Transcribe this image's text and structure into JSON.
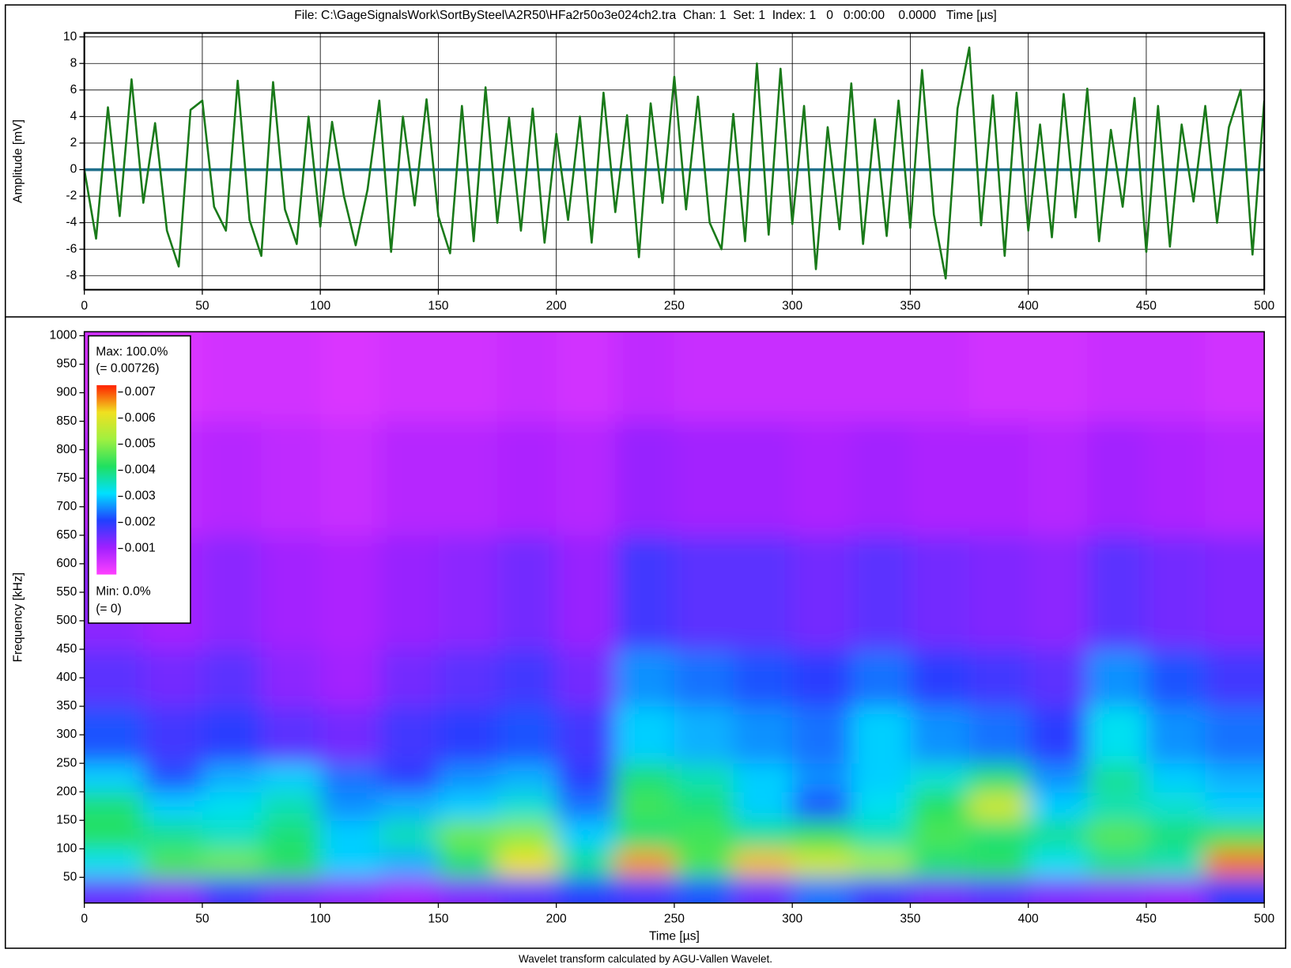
{
  "chart_data": [
    {
      "type": "line",
      "title": "File: C:\\GageSignalsWork\\SortBySteel\\A2R50\\HFa2r50o3e024ch2.tra  Chan: 1  Set: 1  Index: 1   0   0:00:00    0.0000   Time [µs]",
      "ylabel": "Amplitude [mV]",
      "xlim": [
        0,
        500
      ],
      "ylim": [
        -9.05,
        10.3
      ],
      "xticks": [
        0,
        50,
        100,
        150,
        200,
        250,
        300,
        350,
        400,
        450,
        500
      ],
      "yticks": [
        -8,
        -6,
        -4,
        -2,
        0,
        2,
        4,
        6,
        8,
        10
      ],
      "grid": true,
      "series": [
        {
          "color": "#1a7a1a",
          "x": [
            0,
            5,
            10,
            15,
            20,
            25,
            30,
            35,
            40,
            45,
            50,
            55,
            60,
            65,
            70,
            75,
            80,
            85,
            90,
            95,
            100,
            105,
            110,
            115,
            120,
            125,
            130,
            135,
            140,
            145,
            150,
            155,
            160,
            165,
            170,
            175,
            180,
            185,
            190,
            195,
            200,
            205,
            210,
            215,
            220,
            225,
            230,
            235,
            240,
            245,
            250,
            255,
            260,
            265,
            270,
            275,
            280,
            285,
            290,
            295,
            300,
            305,
            310,
            315,
            320,
            325,
            330,
            335,
            340,
            345,
            350,
            355,
            360,
            365,
            370,
            375,
            380,
            385,
            390,
            395,
            400,
            405,
            410,
            415,
            420,
            425,
            430,
            435,
            440,
            445,
            450,
            455,
            460,
            465,
            470,
            475,
            480,
            485,
            490,
            495,
            500
          ],
          "values": [
            0,
            -5.2,
            4.7,
            -3.5,
            6.8,
            -2.5,
            3.5,
            -4.6,
            -7.3,
            4.5,
            5.2,
            -2.8,
            -4.6,
            6.7,
            -3.8,
            -6.5,
            6.6,
            -3.0,
            -5.6,
            4.0,
            -4.3,
            3.6,
            -2.0,
            -5.7,
            -1.5,
            5.2,
            -6.2,
            4.0,
            -2.7,
            5.3,
            -3.5,
            -6.3,
            4.8,
            -5.4,
            6.2,
            -4.0,
            3.9,
            -4.6,
            4.6,
            -5.5,
            2.7,
            -3.8,
            4.0,
            -5.5,
            5.8,
            -3.2,
            4.1,
            -6.6,
            5.0,
            -2.5,
            7.0,
            -3.0,
            5.5,
            -4.0,
            -6.0,
            4.2,
            -5.4,
            8.0,
            -4.9,
            7.6,
            -4.1,
            4.8,
            -7.5,
            3.2,
            -4.5,
            6.5,
            -5.6,
            3.8,
            -5.0,
            5.2,
            -4.4,
            7.5,
            -3.4,
            -8.2,
            4.6,
            9.2,
            -4.2,
            5.6,
            -6.5,
            5.8,
            -4.6,
            3.4,
            -5.1,
            5.7,
            -3.6,
            6.1,
            -5.4,
            3.0,
            -2.8,
            5.4,
            -6.2,
            4.8,
            -5.8,
            3.4,
            -2.4,
            4.8,
            -4.0,
            3.2,
            6.0,
            -6.4,
            5.2
          ]
        },
        {
          "color": "#1f6f8b",
          "x": [
            0,
            500
          ],
          "values": [
            0,
            0
          ]
        }
      ]
    },
    {
      "type": "heatmap",
      "xlabel": "Time [µs]",
      "ylabel": "Frequency [kHz]",
      "xlim": [
        0,
        500
      ],
      "ylim": [
        5,
        1007
      ],
      "xticks": [
        0,
        50,
        100,
        150,
        200,
        250,
        300,
        350,
        400,
        450,
        500
      ],
      "yticks": [
        50,
        100,
        150,
        200,
        250,
        300,
        350,
        400,
        450,
        500,
        550,
        600,
        650,
        700,
        750,
        800,
        850,
        900,
        950,
        1000
      ],
      "x_edges": [
        0,
        25,
        50,
        75,
        100,
        125,
        150,
        175,
        200,
        225,
        250,
        275,
        300,
        325,
        350,
        375,
        400,
        425,
        450,
        475,
        500
      ],
      "y_edges": [
        5,
        50,
        100,
        150,
        200,
        250,
        350,
        450,
        650,
        850,
        1007
      ],
      "z": [
        [
          0.0015,
          0.0012,
          0.0018,
          0.0014,
          0.0012,
          0.001,
          0.0013,
          0.0016,
          0.002,
          0.0018,
          0.0022,
          0.0015,
          0.0024,
          0.0018,
          0.0014,
          0.0016,
          0.0013,
          0.0012,
          0.0011,
          0.002
        ],
        [
          0.0032,
          0.0045,
          0.0048,
          0.0042,
          0.003,
          0.0028,
          0.004,
          0.0062,
          0.0038,
          0.0066,
          0.0045,
          0.0064,
          0.0058,
          0.0052,
          0.004,
          0.0042,
          0.0032,
          0.0038,
          0.0036,
          0.0068
        ],
        [
          0.0042,
          0.0038,
          0.0035,
          0.004,
          0.003,
          0.0036,
          0.0048,
          0.005,
          0.003,
          0.004,
          0.0044,
          0.0038,
          0.0042,
          0.0036,
          0.0045,
          0.004,
          0.0038,
          0.0046,
          0.004,
          0.0044
        ],
        [
          0.004,
          0.003,
          0.0032,
          0.0036,
          0.0026,
          0.0028,
          0.003,
          0.0034,
          0.0024,
          0.0044,
          0.004,
          0.003,
          0.0022,
          0.0032,
          0.0042,
          0.0058,
          0.003,
          0.0036,
          0.0034,
          0.003
        ],
        [
          0.003,
          0.0022,
          0.0028,
          0.003,
          0.0024,
          0.002,
          0.0026,
          0.0028,
          0.002,
          0.004,
          0.0036,
          0.003,
          0.0026,
          0.003,
          0.0034,
          0.004,
          0.0026,
          0.0038,
          0.003,
          0.0028
        ],
        [
          0.0022,
          0.0018,
          0.002,
          0.0016,
          0.0014,
          0.0018,
          0.002,
          0.0022,
          0.0018,
          0.003,
          0.0028,
          0.0026,
          0.0024,
          0.003,
          0.0026,
          0.0024,
          0.002,
          0.0032,
          0.0026,
          0.0024
        ],
        [
          0.0016,
          0.0014,
          0.0016,
          0.0012,
          0.001,
          0.0014,
          0.0016,
          0.0018,
          0.0014,
          0.0026,
          0.0024,
          0.0022,
          0.002,
          0.0024,
          0.002,
          0.0018,
          0.0016,
          0.0026,
          0.0022,
          0.0018
        ],
        [
          0.0012,
          0.001,
          0.0012,
          0.001,
          0.0009,
          0.0011,
          0.0012,
          0.0014,
          0.0011,
          0.0018,
          0.0016,
          0.0016,
          0.0014,
          0.0016,
          0.0014,
          0.0013,
          0.0012,
          0.0016,
          0.0014,
          0.0013
        ],
        [
          0.0008,
          0.0007,
          0.0008,
          0.0007,
          0.0006,
          0.0008,
          0.0008,
          0.0009,
          0.0008,
          0.0011,
          0.001,
          0.001,
          0.0009,
          0.001,
          0.0009,
          0.0009,
          0.0008,
          0.001,
          0.0009,
          0.0008
        ],
        [
          0.0005,
          0.0004,
          0.0005,
          0.0005,
          0.0004,
          0.0005,
          0.0005,
          0.0006,
          0.0005,
          0.0007,
          0.0006,
          0.0006,
          0.0006,
          0.0006,
          0.0006,
          0.0005,
          0.0005,
          0.0006,
          0.0006,
          0.0005
        ]
      ],
      "zlim": [
        0,
        0.00726
      ],
      "zticks": [
        0.001,
        0.002,
        0.003,
        0.004,
        0.005,
        0.006,
        0.007
      ],
      "colormap": [
        "#ff40ff",
        "#a020ff",
        "#2040ff",
        "#00e0ff",
        "#20e060",
        "#a0f040",
        "#f0e020",
        "#ff2000"
      ],
      "colorbar": {
        "max_text": "Max: 100.0%",
        "max_value_text": "(= 0.00726)",
        "min_text": "Min: 0.0%",
        "min_value_text": "(= 0)"
      }
    }
  ],
  "footer": "Wavelet transform calculated by AGU-Vallen Wavelet."
}
